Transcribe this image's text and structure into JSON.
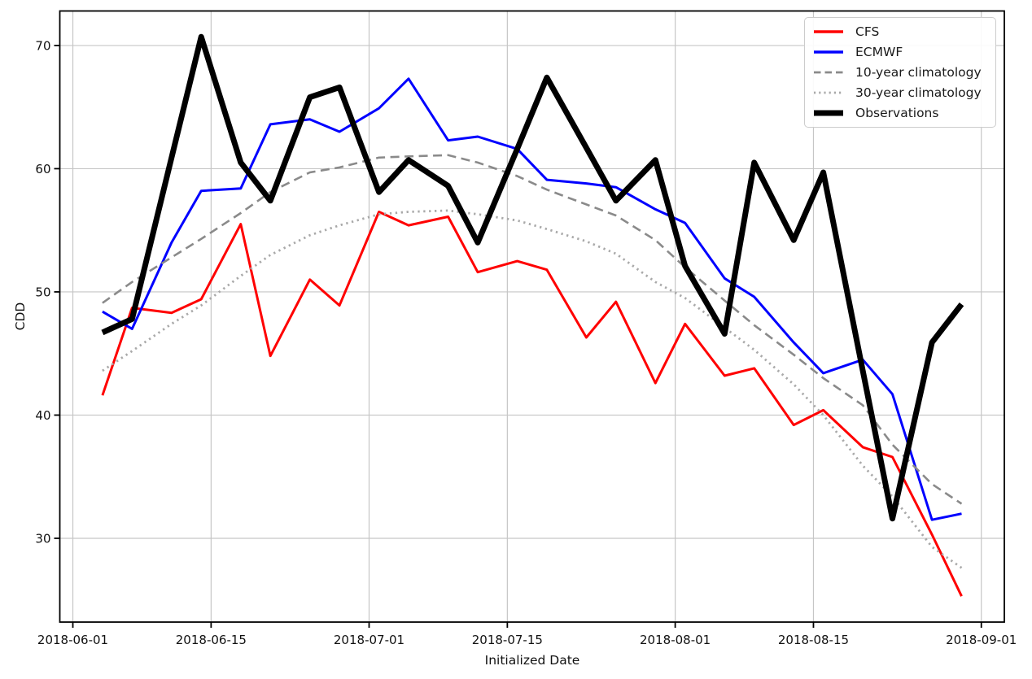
{
  "chart_data": {
    "type": "line",
    "title": "",
    "xlabel": "Initialized Date",
    "ylabel": "CDD",
    "grid": true,
    "legend_position": "upper right",
    "x_axis": {
      "tick_labels": [
        "2018-06-01",
        "2018-06-15",
        "2018-07-01",
        "2018-07-15",
        "2018-08-01",
        "2018-08-15",
        "2018-09-01"
      ],
      "tick_days": [
        0,
        14,
        30,
        44,
        61,
        75,
        92
      ],
      "range_days": [
        -1.32,
        94.33
      ]
    },
    "y_axis": {
      "ticks": [
        30,
        40,
        50,
        60,
        70
      ],
      "range": [
        23.2,
        72.8
      ]
    },
    "x_dates": [
      "2018-06-04",
      "2018-06-07",
      "2018-06-11",
      "2018-06-14",
      "2018-06-18",
      "2018-06-21",
      "2018-06-25",
      "2018-06-28",
      "2018-07-02",
      "2018-07-05",
      "2018-07-09",
      "2018-07-12",
      "2018-07-16",
      "2018-07-19",
      "2018-07-23",
      "2018-07-26",
      "2018-07-30",
      "2018-08-02",
      "2018-08-06",
      "2018-08-09",
      "2018-08-13",
      "2018-08-16",
      "2018-08-20",
      "2018-08-23",
      "2018-08-27",
      "2018-08-30"
    ],
    "x_days": [
      3,
      6,
      10,
      13,
      17,
      20,
      24,
      27,
      31,
      34,
      38,
      41,
      45,
      48,
      52,
      55,
      59,
      62,
      66,
      69,
      73,
      76,
      80,
      83,
      87,
      90
    ],
    "series": [
      {
        "name": "CFS",
        "color": "#ff0000",
        "style": "solid",
        "width": 3,
        "values": [
          41.6,
          48.7,
          48.3,
          49.4,
          55.5,
          44.8,
          51.0,
          48.9,
          56.5,
          55.4,
          56.1,
          51.6,
          52.5,
          51.8,
          46.3,
          49.2,
          42.6,
          47.4,
          43.2,
          43.8,
          39.2,
          40.4,
          37.4,
          36.6,
          30.3,
          25.3
        ]
      },
      {
        "name": "ECMWF",
        "color": "#0000ff",
        "style": "solid",
        "width": 3,
        "values": [
          48.4,
          47.0,
          54.0,
          58.2,
          58.4,
          63.6,
          64.0,
          63.0,
          64.9,
          67.3,
          62.3,
          62.6,
          61.6,
          59.1,
          58.8,
          58.5,
          56.7,
          55.6,
          51.1,
          49.6,
          45.9,
          43.4,
          44.5,
          41.7,
          31.5,
          32.0
        ]
      },
      {
        "name": "10-year climatology",
        "color": "#8a8a8a",
        "style": "dashed",
        "width": 2.6,
        "values": [
          49.1,
          50.8,
          52.8,
          54.3,
          56.4,
          58.1,
          59.7,
          60.1,
          60.9,
          61.0,
          61.1,
          60.5,
          59.4,
          58.3,
          57.1,
          56.2,
          54.2,
          52.0,
          49.3,
          47.3,
          44.9,
          43.0,
          40.8,
          37.6,
          34.4,
          32.8
        ]
      },
      {
        "name": "30-year climatology",
        "color": "#a9a9a9",
        "style": "dotted",
        "width": 2.8,
        "values": [
          43.6,
          45.2,
          47.4,
          48.9,
          51.3,
          53.0,
          54.6,
          55.4,
          56.3,
          56.5,
          56.6,
          56.3,
          55.8,
          55.1,
          54.1,
          53.1,
          50.8,
          49.5,
          47.1,
          45.3,
          42.5,
          40.0,
          35.9,
          33.4,
          29.3,
          27.6
        ]
      },
      {
        "name": "Observations",
        "color": "#000000",
        "style": "solid",
        "width": 7,
        "values": [
          46.7,
          47.8,
          60.9,
          70.7,
          60.5,
          57.4,
          65.8,
          66.6,
          58.1,
          60.7,
          58.6,
          54.0,
          61.6,
          67.4,
          61.7,
          57.4,
          60.7,
          52.1,
          46.6,
          60.5,
          54.2,
          59.7,
          43.6,
          31.6,
          45.9,
          49.0
        ]
      }
    ]
  }
}
